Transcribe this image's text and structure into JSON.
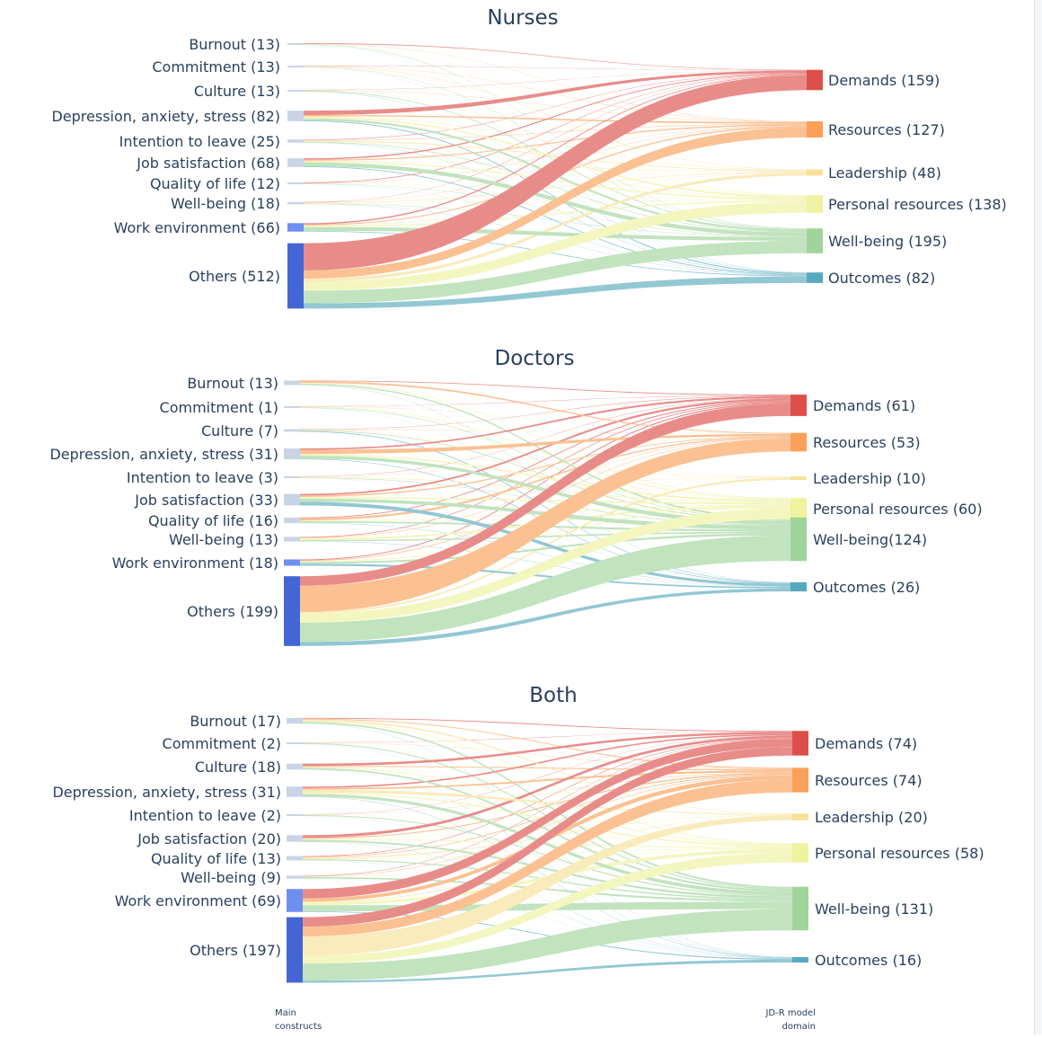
{
  "axis_captions": {
    "left": [
      "Main",
      "constructs"
    ],
    "right": [
      "JD-R model",
      "domain"
    ]
  },
  "colors": {
    "source_node": "#c9d4e6",
    "source_node_strong": "#6f8ff0",
    "others_node": "#4466d4",
    "Demands": "#d7302c",
    "Resources": "#f98f3c",
    "Leadership": "#f5dc84",
    "Personal resources": "#ecf08e",
    "Well-being": "#8fcd8a",
    "Outcomes": "#3a9bb0"
  },
  "chart_data": [
    {
      "type": "sankey",
      "title": "Nurses",
      "sources": [
        {
          "name": "Burnout",
          "label": "Burnout (13)",
          "value": 13
        },
        {
          "name": "Commitment",
          "label": "Commitment (13)",
          "value": 13
        },
        {
          "name": "Culture",
          "label": "Culture (13)",
          "value": 13
        },
        {
          "name": "Depression, anxiety, stress",
          "label": "Depression, anxiety, stress (82)",
          "value": 82
        },
        {
          "name": "Intention to leave",
          "label": "Intention to leave (25)",
          "value": 25
        },
        {
          "name": "Job satisfaction",
          "label": "Job satisfaction (68)",
          "value": 68
        },
        {
          "name": "Quality of life",
          "label": "Quality of life (12)",
          "value": 12
        },
        {
          "name": "Well-being",
          "label": "Well-being (18)",
          "value": 18
        },
        {
          "name": "Work environment",
          "label": "Work environment (66)",
          "value": 66
        },
        {
          "name": "Others",
          "label": "Others (512)",
          "value": 512
        }
      ],
      "targets": [
        {
          "name": "Demands",
          "label": "Demands (159)",
          "value": 159
        },
        {
          "name": "Resources",
          "label": "Resources (127)",
          "value": 127
        },
        {
          "name": "Leadership",
          "label": "Leadership (48)",
          "value": 48
        },
        {
          "name": "Personal resources",
          "label": "Personal resources (138)",
          "value": 138
        },
        {
          "name": "Well-being",
          "label": "Well-being (195)",
          "value": 195
        },
        {
          "name": "Outcomes",
          "label": "Outcomes (82)",
          "value": 82
        }
      ]
    },
    {
      "type": "sankey",
      "title": "Doctors",
      "sources": [
        {
          "name": "Burnout",
          "label": "Burnout (13)",
          "value": 13
        },
        {
          "name": "Commitment",
          "label": "Commitment (1)",
          "value": 1
        },
        {
          "name": "Culture",
          "label": "Culture (7)",
          "value": 7
        },
        {
          "name": "Depression, anxiety, stress",
          "label": "Depression, anxiety, stress (31)",
          "value": 31
        },
        {
          "name": "Intention to leave",
          "label": "Intention to leave (3)",
          "value": 3
        },
        {
          "name": "Job satisfaction",
          "label": "Job satisfaction (33)",
          "value": 33
        },
        {
          "name": "Quality of life",
          "label": "Quality of life (16)",
          "value": 16
        },
        {
          "name": "Well-being",
          "label": "Well-being (13)",
          "value": 13
        },
        {
          "name": "Work environment",
          "label": "Work environment (18)",
          "value": 18
        },
        {
          "name": "Others",
          "label": "Others  (199)",
          "value": 199
        }
      ],
      "targets": [
        {
          "name": "Demands",
          "label": "Demands (61)",
          "value": 61
        },
        {
          "name": "Resources",
          "label": "Resources (53)",
          "value": 53
        },
        {
          "name": "Leadership",
          "label": "Leadership (10)",
          "value": 10
        },
        {
          "name": "Personal resources",
          "label": "Personal resources (60)",
          "value": 60
        },
        {
          "name": "Well-being",
          "label": "Well-being(124)",
          "value": 124
        },
        {
          "name": "Outcomes",
          "label": "Outcomes (26)",
          "value": 26
        }
      ]
    },
    {
      "type": "sankey",
      "title": "Both",
      "sources": [
        {
          "name": "Burnout",
          "label": "Burnout (17)",
          "value": 17
        },
        {
          "name": "Commitment",
          "label": "Commitment (2)",
          "value": 2
        },
        {
          "name": "Culture",
          "label": "Culture (18)",
          "value": 18
        },
        {
          "name": "Depression, anxiety, stress",
          "label": "Depression, anxiety, stress (31)",
          "value": 31
        },
        {
          "name": "Intention to leave",
          "label": "Intention to leave (2)",
          "value": 2
        },
        {
          "name": "Job satisfaction",
          "label": "Job satisfaction (20)",
          "value": 20
        },
        {
          "name": "Quality of life",
          "label": "Quality of life (13)",
          "value": 13
        },
        {
          "name": "Well-being",
          "label": "Well-being (9)",
          "value": 9
        },
        {
          "name": "Work environment",
          "label": "Work environment (69)",
          "value": 69
        },
        {
          "name": "Others",
          "label": "Others (197)",
          "value": 197
        }
      ],
      "targets": [
        {
          "name": "Demands",
          "label": "Demands (74)",
          "value": 74
        },
        {
          "name": "Resources",
          "label": "Resources (74)",
          "value": 74
        },
        {
          "name": "Leadership",
          "label": "Leadership (20)",
          "value": 20
        },
        {
          "name": "Personal resources",
          "label": "Personal resources (58)",
          "value": 58
        },
        {
          "name": "Well-being",
          "label": "Well-being (131)",
          "value": 131
        },
        {
          "name": "Outcomes",
          "label": "Outcomes (16)",
          "value": 16
        }
      ]
    }
  ]
}
